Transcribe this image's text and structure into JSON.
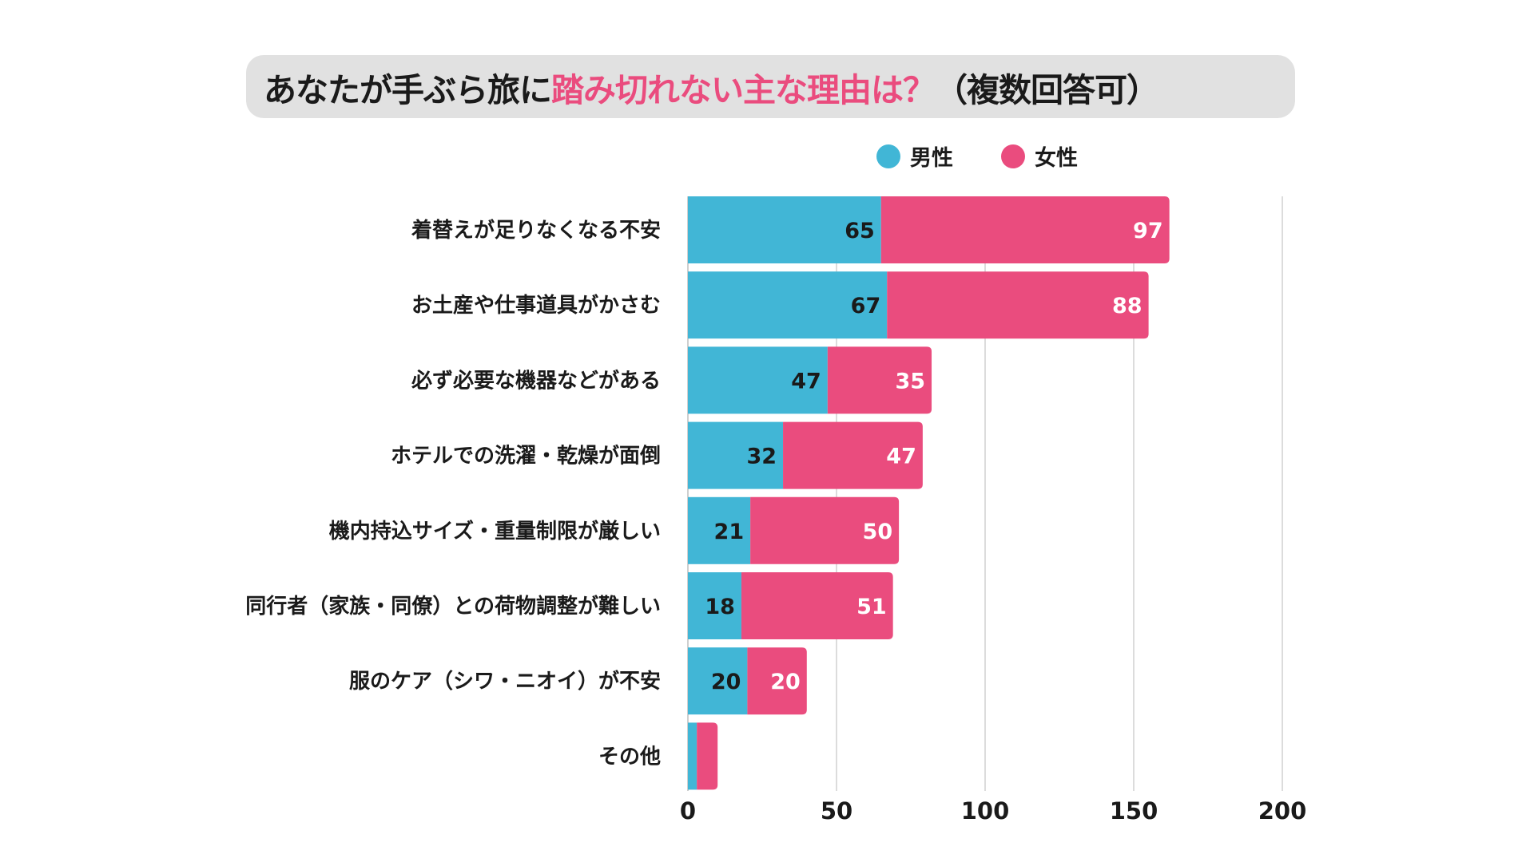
{
  "chart_data": {
    "type": "bar",
    "orientation": "horizontal",
    "stacked": true,
    "title": {
      "prefix": "あなたが手ぶら旅に",
      "highlight": "踏み切れない主な理由は？",
      "suffix": "（複数回答可）"
    },
    "categories": [
      "着替えが足りなくなる不安",
      "お土産や仕事道具がかさむ",
      "必ず必要な機器などがある",
      "ホテルでの洗濯・乾燥が面倒",
      "機内持込サイズ・重量制限が厳しい",
      "同行者（家族・同僚）との荷物調整が難しい",
      "服のケア（シワ・ニオイ）が不安",
      "その他"
    ],
    "series": [
      {
        "name": "男性",
        "color": "#41b6d6",
        "values": [
          65,
          67,
          47,
          32,
          21,
          18,
          20,
          3
        ],
        "labels_shown": [
          true,
          true,
          true,
          true,
          true,
          true,
          true,
          false
        ]
      },
      {
        "name": "女性",
        "color": "#ea4c7e",
        "values": [
          97,
          88,
          35,
          47,
          50,
          51,
          20,
          7
        ],
        "labels_shown": [
          true,
          true,
          true,
          true,
          true,
          true,
          true,
          false
        ]
      }
    ],
    "xlim": [
      0,
      200
    ],
    "xticks": [
      "0",
      "50",
      "100",
      "150",
      "200"
    ],
    "grid": true,
    "legend": "top-right"
  }
}
